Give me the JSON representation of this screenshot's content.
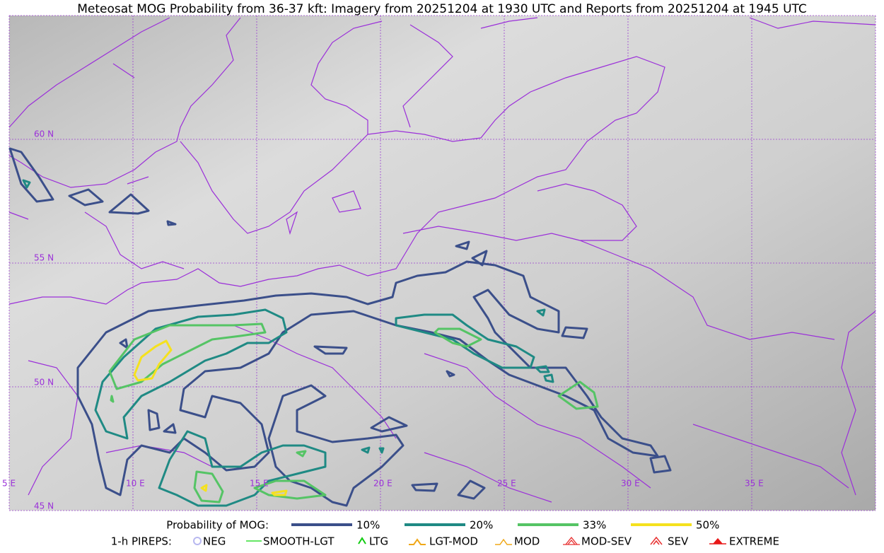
{
  "title": "Meteosat MOG Probability from 36-37 kft: Imagery from 20251204 at 1930 UTC and Reports from 20251204 at 1945 UTC",
  "graticule": {
    "lat_labels": [
      "60 N",
      "55 N",
      "50 N",
      "45 N"
    ],
    "lon_labels": [
      "5 E",
      "10 E",
      "15 E",
      "20 E",
      "25 E",
      "30 E",
      "35 E"
    ]
  },
  "legend": {
    "probability": {
      "label": "Probability of MOG:",
      "items": [
        {
          "label": "10%",
          "color": "#3b4f8a"
        },
        {
          "label": "20%",
          "color": "#1f8a84"
        },
        {
          "label": "33%",
          "color": "#55c465"
        },
        {
          "label": "50%",
          "color": "#f5e11e"
        }
      ]
    },
    "pireps": {
      "label": "1-h PIREPS:",
      "items": [
        {
          "label": "NEG",
          "color": "#b8b8f0"
        },
        {
          "label": "SMOOTH-LGT",
          "color": "#33dd33"
        },
        {
          "label": "LTG",
          "color": "#11cc11"
        },
        {
          "label": "LGT-MOD",
          "color": "#f0a818"
        },
        {
          "label": "MOD",
          "color": "#f0a818"
        },
        {
          "label": "MOD-SEV",
          "color": "#e83030"
        },
        {
          "label": "SEV",
          "color": "#e83030"
        },
        {
          "label": "EXTREME",
          "color": "#e81818"
        }
      ]
    }
  }
}
